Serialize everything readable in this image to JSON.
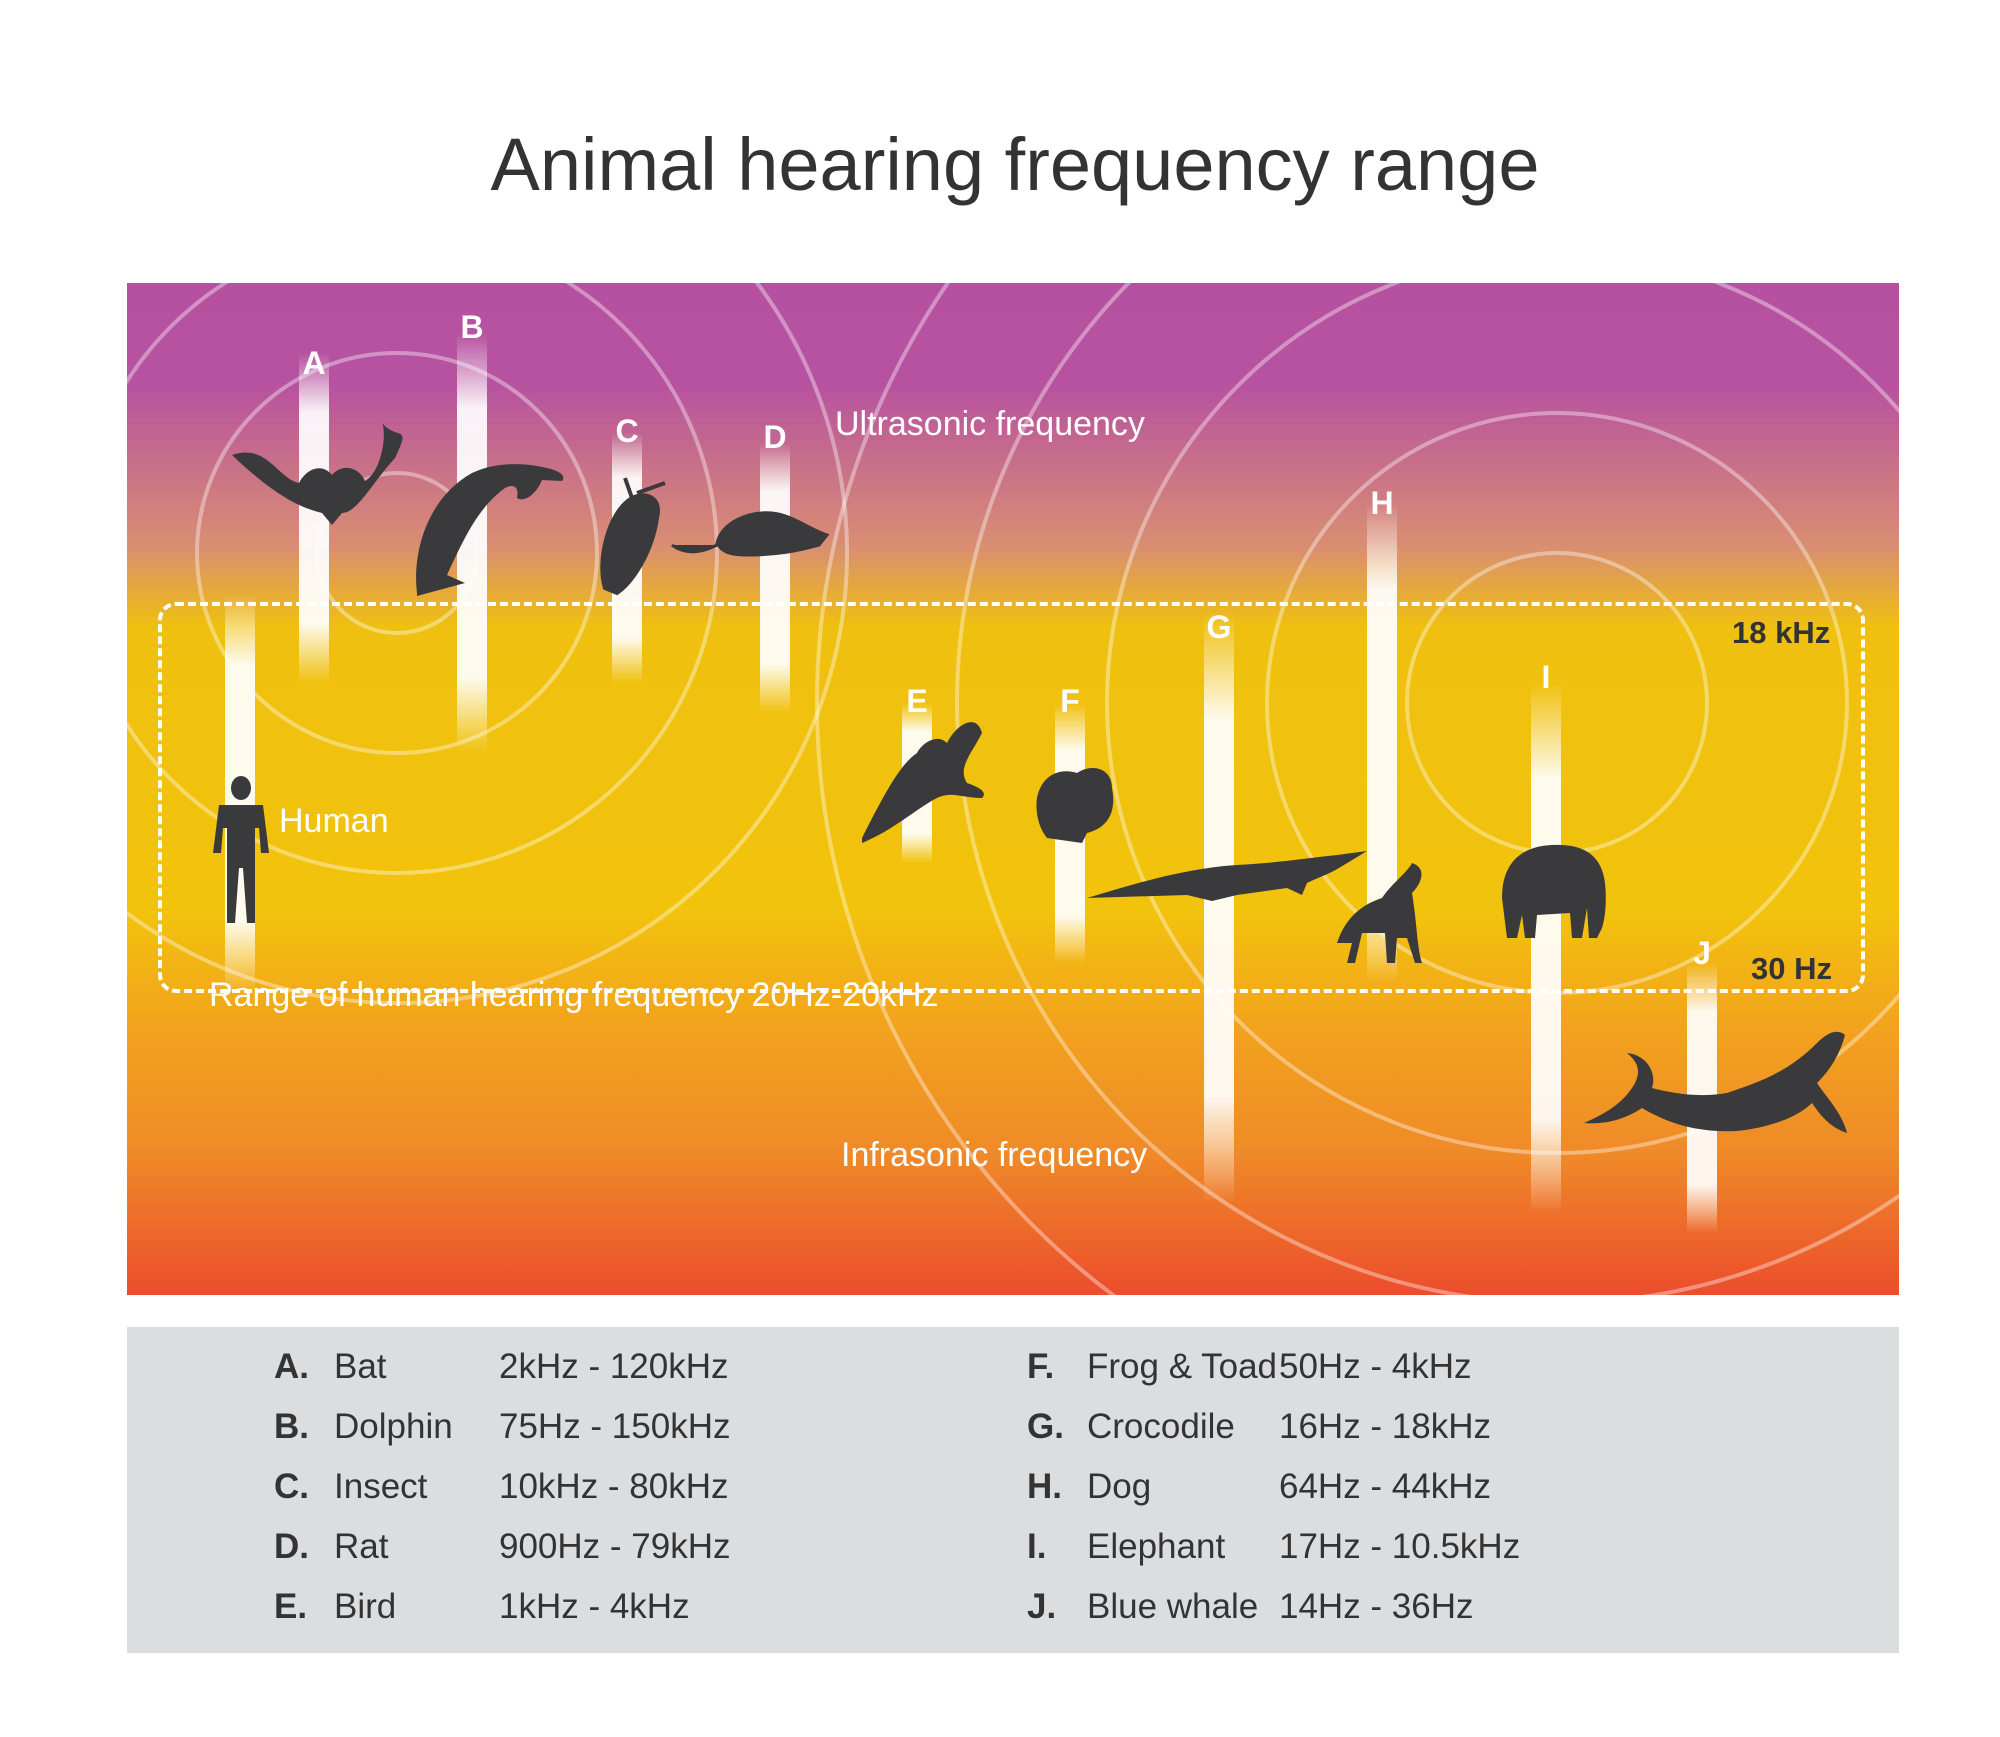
{
  "title": "Animal hearing frequency range",
  "labels": {
    "ultrasonic": "Ultrasonic frequency",
    "infrasonic": "Infrasonic frequency",
    "human": "Human",
    "range": "Range of human hearing frequency 20Hz-20kHz",
    "upper_limit": "18 kHz",
    "lower_limit": "30 Hz"
  },
  "markers": [
    "A",
    "B",
    "C",
    "D",
    "E",
    "F",
    "G",
    "H",
    "I",
    "J"
  ],
  "legend": [
    {
      "key": "A.",
      "name": "Bat",
      "range": "2kHz - 120kHz"
    },
    {
      "key": "B.",
      "name": "Dolphin",
      "range": "75Hz - 150kHz"
    },
    {
      "key": "C.",
      "name": "Insect",
      "range": "10kHz - 80kHz"
    },
    {
      "key": "D.",
      "name": "Rat",
      "range": "900Hz - 79kHz"
    },
    {
      "key": "E.",
      "name": "Bird",
      "range": "1kHz - 4kHz"
    },
    {
      "key": "F.",
      "name": "Frog & Toad",
      "range": "50Hz - 4kHz"
    },
    {
      "key": "G.",
      "name": "Crocodile",
      "range": "16Hz - 18kHz"
    },
    {
      "key": "H.",
      "name": "Dog",
      "range": "64Hz - 44kHz"
    },
    {
      "key": "I.",
      "name": "Elephant",
      "range": "17Hz - 10.5kHz"
    },
    {
      "key": "J.",
      "name": "Blue whale",
      "range": "14Hz - 36Hz"
    }
  ],
  "colors": {
    "top": "#b551a0",
    "middle": "#f2c30c",
    "bottom": "#ec4d2c",
    "silhouette": "#3a3a3c",
    "legend_bg": "#dcdddf"
  }
}
